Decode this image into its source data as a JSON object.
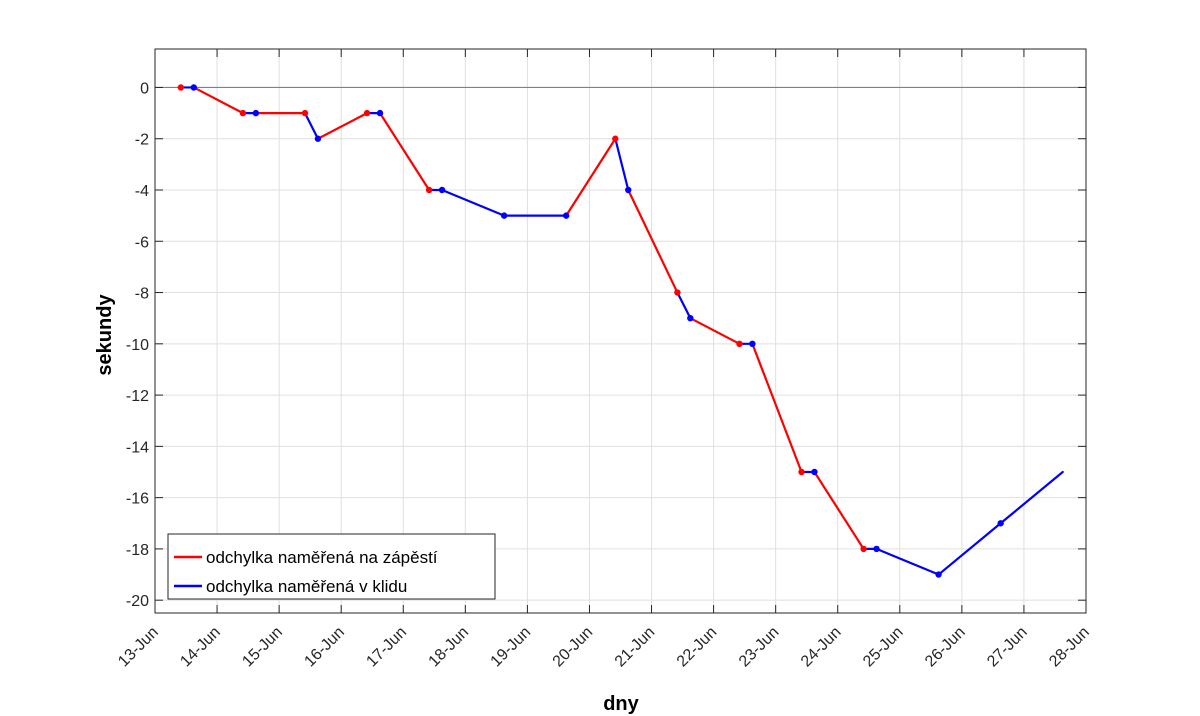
{
  "chart_data": {
    "type": "line",
    "xlabel": "dny",
    "ylabel": "sekundy",
    "xlim": [
      "2023-06-13",
      "2023-06-28"
    ],
    "ylim": [
      -20.5,
      1.5
    ],
    "x_ticks": [
      "13-Jun",
      "14-Jun",
      "15-Jun",
      "16-Jun",
      "17-Jun",
      "18-Jun",
      "19-Jun",
      "20-Jun",
      "21-Jun",
      "22-Jun",
      "23-Jun",
      "24-Jun",
      "25-Jun",
      "26-Jun",
      "27-Jun",
      "28-Jun"
    ],
    "y_ticks": [
      0,
      -2,
      -4,
      -6,
      -8,
      -10,
      -12,
      -14,
      -16,
      -18,
      -20
    ],
    "grid": true,
    "zero_line": true,
    "legend_position": "bottom-left",
    "series": [
      {
        "name": "odchylka naměřená na zápěstí",
        "color": "#ff0000",
        "marker_points": [
          {
            "x": "2023-06-13 10:00",
            "y": 0
          },
          {
            "x": "2023-06-14 10:00",
            "y": -1
          },
          {
            "x": "2023-06-15 10:00",
            "y": -1
          },
          {
            "x": "2023-06-16 10:00",
            "y": -1
          },
          {
            "x": "2023-06-17 10:00",
            "y": -4
          },
          {
            "x": "2023-06-20 10:00",
            "y": -2
          },
          {
            "x": "2023-06-21 10:00",
            "y": -8
          },
          {
            "x": "2023-06-22 10:00",
            "y": -10
          },
          {
            "x": "2023-06-23 10:00",
            "y": -15
          },
          {
            "x": "2023-06-24 10:00",
            "y": -18
          }
        ]
      },
      {
        "name": "odchylka naměřená v klidu",
        "color": "#0000ff",
        "marker_points": [
          {
            "x": "2023-06-13 15:00",
            "y": 0
          },
          {
            "x": "2023-06-14 15:00",
            "y": -1
          },
          {
            "x": "2023-06-15 15:00",
            "y": -2
          },
          {
            "x": "2023-06-16 15:00",
            "y": -1
          },
          {
            "x": "2023-06-17 15:00",
            "y": -4
          },
          {
            "x": "2023-06-18 15:00",
            "y": -5
          },
          {
            "x": "2023-06-19 15:00",
            "y": -5
          },
          {
            "x": "2023-06-20 15:00",
            "y": -4
          },
          {
            "x": "2023-06-21 15:00",
            "y": -9
          },
          {
            "x": "2023-06-22 15:00",
            "y": -10
          },
          {
            "x": "2023-06-23 15:00",
            "y": -15
          },
          {
            "x": "2023-06-24 15:00",
            "y": -18
          },
          {
            "x": "2023-06-25 15:00",
            "y": -19
          },
          {
            "x": "2023-06-26 15:00",
            "y": -17
          }
        ]
      }
    ],
    "combined_line_points": [
      {
        "x": "2023-06-13 10:00",
        "y": 0,
        "color": "#ff0000"
      },
      {
        "x": "2023-06-13 15:00",
        "y": 0,
        "color": "#0000ff"
      },
      {
        "x": "2023-06-14 10:00",
        "y": -1,
        "color": "#ff0000"
      },
      {
        "x": "2023-06-14 15:00",
        "y": -1,
        "color": "#0000ff"
      },
      {
        "x": "2023-06-15 10:00",
        "y": -1,
        "color": "#ff0000"
      },
      {
        "x": "2023-06-15 15:00",
        "y": -2,
        "color": "#0000ff"
      },
      {
        "x": "2023-06-16 10:00",
        "y": -1,
        "color": "#ff0000"
      },
      {
        "x": "2023-06-16 15:00",
        "y": -1,
        "color": "#0000ff"
      },
      {
        "x": "2023-06-17 10:00",
        "y": -4,
        "color": "#ff0000"
      },
      {
        "x": "2023-06-17 15:00",
        "y": -4,
        "color": "#0000ff"
      },
      {
        "x": "2023-06-18 15:00",
        "y": -5,
        "color": "#0000ff"
      },
      {
        "x": "2023-06-19 15:00",
        "y": -5,
        "color": "#0000ff"
      },
      {
        "x": "2023-06-20 10:00",
        "y": -2,
        "color": "#ff0000"
      },
      {
        "x": "2023-06-20 15:00",
        "y": -4,
        "color": "#0000ff"
      },
      {
        "x": "2023-06-21 10:00",
        "y": -8,
        "color": "#ff0000"
      },
      {
        "x": "2023-06-21 15:00",
        "y": -9,
        "color": "#0000ff"
      },
      {
        "x": "2023-06-22 10:00",
        "y": -10,
        "color": "#ff0000"
      },
      {
        "x": "2023-06-22 15:00",
        "y": -10,
        "color": "#0000ff"
      },
      {
        "x": "2023-06-23 10:00",
        "y": -15,
        "color": "#ff0000"
      },
      {
        "x": "2023-06-23 15:00",
        "y": -15,
        "color": "#0000ff"
      },
      {
        "x": "2023-06-24 10:00",
        "y": -18,
        "color": "#ff0000"
      },
      {
        "x": "2023-06-24 15:00",
        "y": -18,
        "color": "#0000ff"
      },
      {
        "x": "2023-06-25 15:00",
        "y": -19,
        "color": "#0000ff"
      },
      {
        "x": "2023-06-26 15:00",
        "y": -17,
        "color": "#0000ff"
      },
      {
        "x": "2023-06-27 15:00",
        "y": -15,
        "color": "#0000ff"
      }
    ]
  }
}
